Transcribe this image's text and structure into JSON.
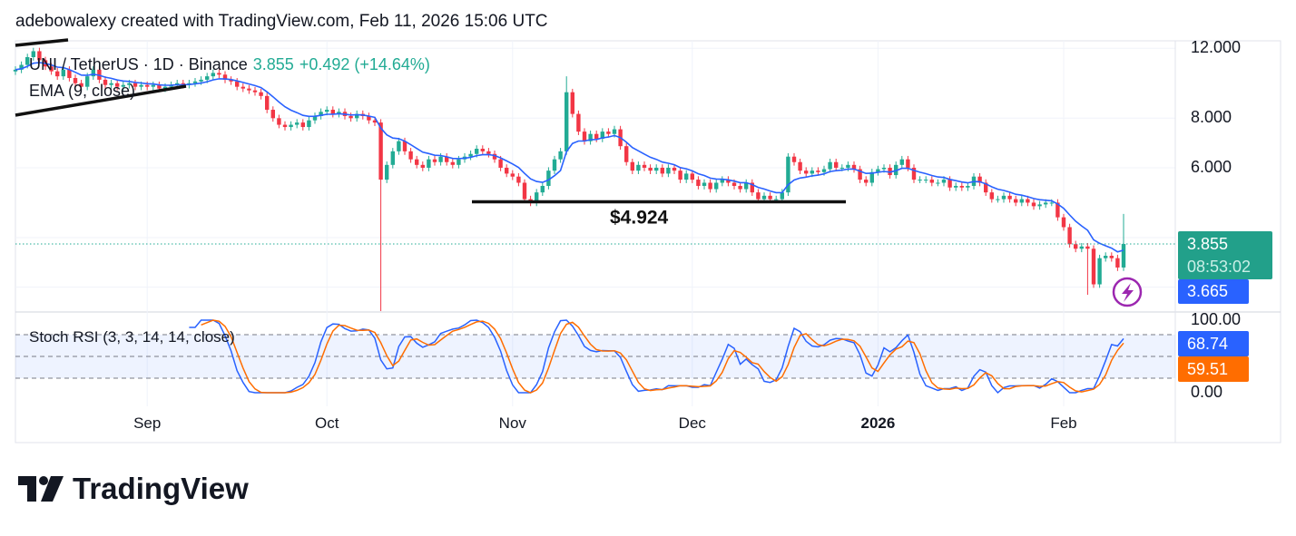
{
  "header": {
    "text": "adebowalexy created with TradingView.com, Feb 11, 2026 15:06 UTC"
  },
  "legend": {
    "symbol": "UNI / TetherUS · 1D · Binance",
    "last": "3.855",
    "change": "+0.492 (+14.64%)",
    "ema": "EMA (9, close)",
    "stoch": "Stoch RSI (3, 3, 14, 14, close)"
  },
  "price_label": {
    "price": "3.855",
    "countdown": "08:53:02",
    "ema_value": "3.665"
  },
  "stoch_labels": {
    "k": "68.74",
    "d": "59.51"
  },
  "annotation": {
    "level_label": "$4.924",
    "level": 4.924
  },
  "logo": {
    "text": "TradingView"
  },
  "colors": {
    "up": "#22ab94",
    "down": "#f23645",
    "ema": "#2962ff",
    "stoch_k": "#2962ff",
    "stoch_d": "#ff6d00",
    "price_tag": "#22a08a",
    "ema_tag": "#2962ff"
  },
  "chart_data": {
    "type": "candlestick",
    "scale": "log",
    "yticks": [
      "12.000",
      "8.000",
      "6.000"
    ],
    "xticks": [
      {
        "label": "Sep",
        "date": "2025-09-01"
      },
      {
        "label": "Oct",
        "date": "2025-10-01"
      },
      {
        "label": "Nov",
        "date": "2025-11-01"
      },
      {
        "label": "Dec",
        "date": "2025-12-01"
      },
      {
        "label": "2026",
        "date": "2026-01-01",
        "bold": true
      },
      {
        "label": "Feb",
        "date": "2026-02-01"
      }
    ],
    "stoch_yticks": [
      "100.00",
      "0.00"
    ],
    "stoch_bands": [
      80,
      50,
      20
    ],
    "candles": {
      "from": "2025-08-10",
      "to": "2026-02-11",
      "close": [
        10.6,
        10.9,
        11.4,
        11.8,
        11.2,
        10.8,
        10.5,
        10.2,
        10.6,
        10.1,
        9.8,
        9.6,
        10.2,
        10.6,
        10.0,
        9.7,
        9.8,
        9.6,
        9.7,
        9.8,
        9.6,
        9.7,
        9.6,
        9.7,
        9.5,
        9.6,
        9.7,
        9.8,
        9.7,
        9.8,
        9.9,
        10.0,
        10.2,
        10.4,
        10.3,
        10.0,
        9.9,
        9.6,
        9.5,
        9.4,
        9.3,
        9.1,
        8.4,
        8.0,
        7.7,
        7.6,
        7.7,
        7.8,
        7.6,
        7.9,
        8.1,
        8.3,
        8.4,
        8.2,
        8.3,
        8.1,
        8.0,
        8.2,
        8.1,
        7.9,
        7.8,
        5.6,
        6.1,
        6.6,
        7.0,
        6.6,
        6.3,
        6.1,
        6.0,
        6.3,
        6.2,
        6.4,
        6.2,
        6.1,
        6.3,
        6.4,
        6.5,
        6.7,
        6.6,
        6.5,
        6.3,
        6.0,
        5.8,
        5.7,
        5.5,
        5.0,
        4.9,
        5.2,
        5.4,
        5.9,
        6.3,
        6.6,
        9.3,
        8.2,
        7.4,
        7.0,
        7.3,
        7.1,
        7.4,
        7.3,
        7.5,
        6.8,
        6.2,
        5.9,
        6.1,
        6.0,
        5.9,
        6.0,
        5.8,
        6.0,
        5.9,
        5.6,
        5.8,
        5.6,
        5.4,
        5.5,
        5.3,
        5.5,
        5.6,
        5.5,
        5.4,
        5.3,
        5.5,
        5.2,
        5.0,
        5.1,
        5.0,
        5.0,
        5.2,
        6.4,
        6.2,
        5.9,
        5.8,
        5.9,
        5.85,
        5.95,
        6.2,
        6.0,
        6.0,
        6.1,
        5.95,
        5.6,
        5.5,
        5.85,
        5.95,
        6.0,
        5.75,
        6.1,
        6.3,
        6.0,
        5.6,
        5.6,
        5.6,
        5.5,
        5.5,
        5.6,
        5.35,
        5.4,
        5.35,
        5.4,
        5.7,
        5.5,
        5.2,
        5.0,
        5.0,
        5.1,
        5.0,
        4.9,
        5.0,
        4.9,
        4.8,
        4.85,
        4.9,
        4.9,
        4.5,
        4.25,
        3.85,
        3.75,
        3.8,
        3.75,
        3.05,
        3.55,
        3.6,
        3.55,
        3.363,
        3.855
      ],
      "extremes": [
        {
          "date": "2025-10-10",
          "low": 2.6
        },
        {
          "date": "2025-11-10",
          "high": 10.2
        },
        {
          "date": "2026-02-05",
          "low": 2.87
        },
        {
          "date": "2026-02-11",
          "high": 4.59
        }
      ]
    }
  }
}
